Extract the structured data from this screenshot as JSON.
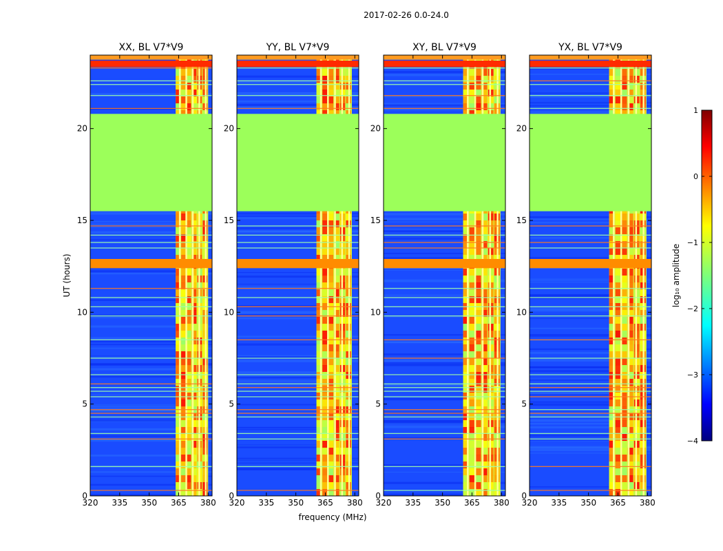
{
  "chart_data": {
    "type": "heatmap",
    "title": "2017-02-26 0.0-24.0",
    "xlabel": "frequency (MHz)",
    "ylabel": "UT (hours)",
    "xlim": [
      320,
      382
    ],
    "ylim": [
      0,
      24
    ],
    "xticks": [
      "320",
      "335",
      "350",
      "365",
      "380"
    ],
    "yticks": [
      "0",
      "5",
      "10",
      "15",
      "20"
    ],
    "panels": [
      {
        "name": "XX, BL V7*V9",
        "band_start": 363.5,
        "band_end": 380
      },
      {
        "name": "YY, BL V7*V9",
        "band_start": 360.5,
        "band_end": 378.5
      },
      {
        "name": "XY, BL V7*V9",
        "band_start": 360.5,
        "band_end": 379.5
      },
      {
        "name": "YX, BL V7*V9",
        "band_start": 360.5,
        "band_end": 379.5
      }
    ],
    "flagged_gap_hours": [
      15.5,
      20.8
    ],
    "colorbar": {
      "label": "log₁₀ amplitude",
      "range": [
        -4,
        1
      ],
      "ticks": [
        "1",
        "0",
        "−1",
        "−2",
        "−3",
        "−4"
      ],
      "colormap": "jet",
      "flag_color": "#9cff5a"
    }
  }
}
